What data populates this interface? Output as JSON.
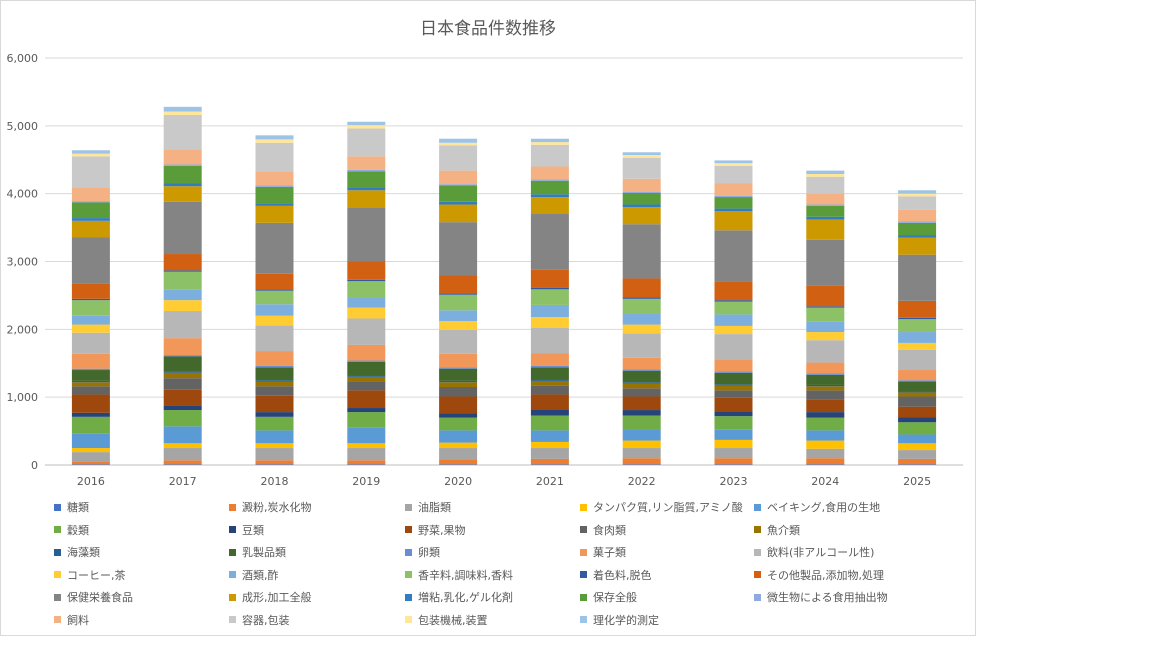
{
  "chart_data": {
    "type": "bar",
    "stacked": true,
    "title": "日本食品件数推移",
    "xlabel": "",
    "ylabel": "",
    "ylim": [
      0,
      6000
    ],
    "yticks": [
      "0",
      "1,000",
      "2,000",
      "3,000",
      "4,000",
      "5,000",
      "6,000"
    ],
    "grid": true,
    "legend_position": "bottom",
    "categories": [
      "2016",
      "2017",
      "2018",
      "2019",
      "2020",
      "2021",
      "2022",
      "2023",
      "2024",
      "2025"
    ],
    "series": [
      {
        "name": "糖類",
        "color": "#4472c4",
        "values": [
          10,
          10,
          10,
          10,
          10,
          10,
          10,
          10,
          10,
          10
        ]
      },
      {
        "name": "澱粉,炭水化物",
        "color": "#ed7d31",
        "values": [
          40,
          60,
          60,
          60,
          70,
          80,
          90,
          90,
          90,
          80
        ]
      },
      {
        "name": "油脂類",
        "color": "#a5a5a5",
        "values": [
          140,
          180,
          180,
          180,
          170,
          160,
          150,
          150,
          140,
          130
        ]
      },
      {
        "name": "タンパク質,リン脂質,アミノ酸",
        "color": "#ffc000",
        "values": [
          60,
          70,
          70,
          70,
          80,
          90,
          110,
          120,
          120,
          100
        ]
      },
      {
        "name": "ベイキング,食用の生地",
        "color": "#5b9bd5",
        "values": [
          210,
          250,
          190,
          230,
          180,
          170,
          170,
          150,
          150,
          130
        ]
      },
      {
        "name": "穀類",
        "color": "#70ad47",
        "values": [
          250,
          240,
          200,
          230,
          190,
          220,
          200,
          200,
          190,
          180
        ]
      },
      {
        "name": "豆類",
        "color": "#264478",
        "values": [
          60,
          70,
          70,
          60,
          60,
          90,
          80,
          70,
          80,
          70
        ]
      },
      {
        "name": "野菜,果物",
        "color": "#9e480e",
        "values": [
          270,
          230,
          240,
          260,
          250,
          220,
          200,
          200,
          180,
          160
        ]
      },
      {
        "name": "食肉類",
        "color": "#636363",
        "values": [
          120,
          170,
          140,
          130,
          140,
          130,
          120,
          110,
          140,
          150
        ]
      },
      {
        "name": "魚介類",
        "color": "#997300",
        "values": [
          60,
          80,
          70,
          70,
          70,
          70,
          70,
          70,
          60,
          60
        ]
      },
      {
        "name": "海藻類",
        "color": "#255e91",
        "values": [
          20,
          20,
          20,
          20,
          20,
          20,
          20,
          20,
          20,
          20
        ]
      },
      {
        "name": "乳製品類",
        "color": "#43682b",
        "values": [
          160,
          220,
          190,
          200,
          180,
          180,
          170,
          170,
          150,
          140
        ]
      },
      {
        "name": "卵類",
        "color": "#698ed0",
        "values": [
          20,
          20,
          20,
          20,
          20,
          20,
          20,
          20,
          20,
          20
        ]
      },
      {
        "name": "菓子類",
        "color": "#f1975a",
        "values": [
          220,
          250,
          220,
          230,
          200,
          190,
          170,
          180,
          160,
          150
        ]
      },
      {
        "name": "飲料(非アルコール性)",
        "color": "#b7b7b7",
        "values": [
          310,
          400,
          380,
          390,
          350,
          370,
          360,
          370,
          330,
          300
        ]
      },
      {
        "name": "コーヒー,茶",
        "color": "#ffcd33",
        "values": [
          120,
          160,
          140,
          160,
          130,
          160,
          130,
          120,
          120,
          100
        ]
      },
      {
        "name": "酒類,酢",
        "color": "#7cafdd",
        "values": [
          130,
          160,
          170,
          150,
          160,
          180,
          170,
          170,
          160,
          160
        ]
      },
      {
        "name": "香辛料,調味料,香料",
        "color": "#8cc168",
        "values": [
          230,
          260,
          200,
          240,
          230,
          230,
          210,
          190,
          200,
          190
        ]
      },
      {
        "name": "着色料,脱色",
        "color": "#335aa1",
        "values": [
          20,
          20,
          20,
          20,
          20,
          20,
          20,
          20,
          20,
          20
        ]
      },
      {
        "name": "その他製品,添加物,処理",
        "color": "#d26012",
        "values": [
          230,
          240,
          230,
          270,
          270,
          270,
          280,
          280,
          300,
          250
        ]
      },
      {
        "name": "保健栄養食品",
        "color": "#848484",
        "values": [
          680,
          770,
          750,
          800,
          780,
          820,
          800,
          750,
          680,
          680
        ]
      },
      {
        "name": "成形,加工全般",
        "color": "#cc9a00",
        "values": [
          240,
          230,
          250,
          250,
          260,
          250,
          250,
          280,
          300,
          250
        ]
      },
      {
        "name": "増粘,乳化,ゲル化剤",
        "color": "#327dc2",
        "values": [
          40,
          40,
          40,
          40,
          40,
          40,
          40,
          40,
          40,
          40
        ]
      },
      {
        "name": "保存全般",
        "color": "#5a9c3a",
        "values": [
          230,
          260,
          240,
          240,
          240,
          200,
          170,
          170,
          160,
          180
        ]
      },
      {
        "name": "微生物による食用抽出物",
        "color": "#8faadc",
        "values": [
          20,
          20,
          20,
          20,
          20,
          20,
          20,
          20,
          20,
          20
        ]
      },
      {
        "name": "飼料",
        "color": "#f4b183",
        "values": [
          200,
          220,
          210,
          200,
          200,
          190,
          190,
          180,
          160,
          170
        ]
      },
      {
        "name": "容器,包装",
        "color": "#c9c9c9",
        "values": [
          460,
          510,
          420,
          410,
          370,
          320,
          310,
          260,
          250,
          200
        ]
      },
      {
        "name": "包装機械,装置",
        "color": "#ffe699",
        "values": [
          40,
          50,
          50,
          50,
          40,
          40,
          40,
          40,
          40,
          40
        ]
      },
      {
        "name": "理化学的測定",
        "color": "#9dc3e6",
        "values": [
          50,
          70,
          60,
          50,
          60,
          50,
          40,
          40,
          50,
          50
        ]
      }
    ]
  }
}
